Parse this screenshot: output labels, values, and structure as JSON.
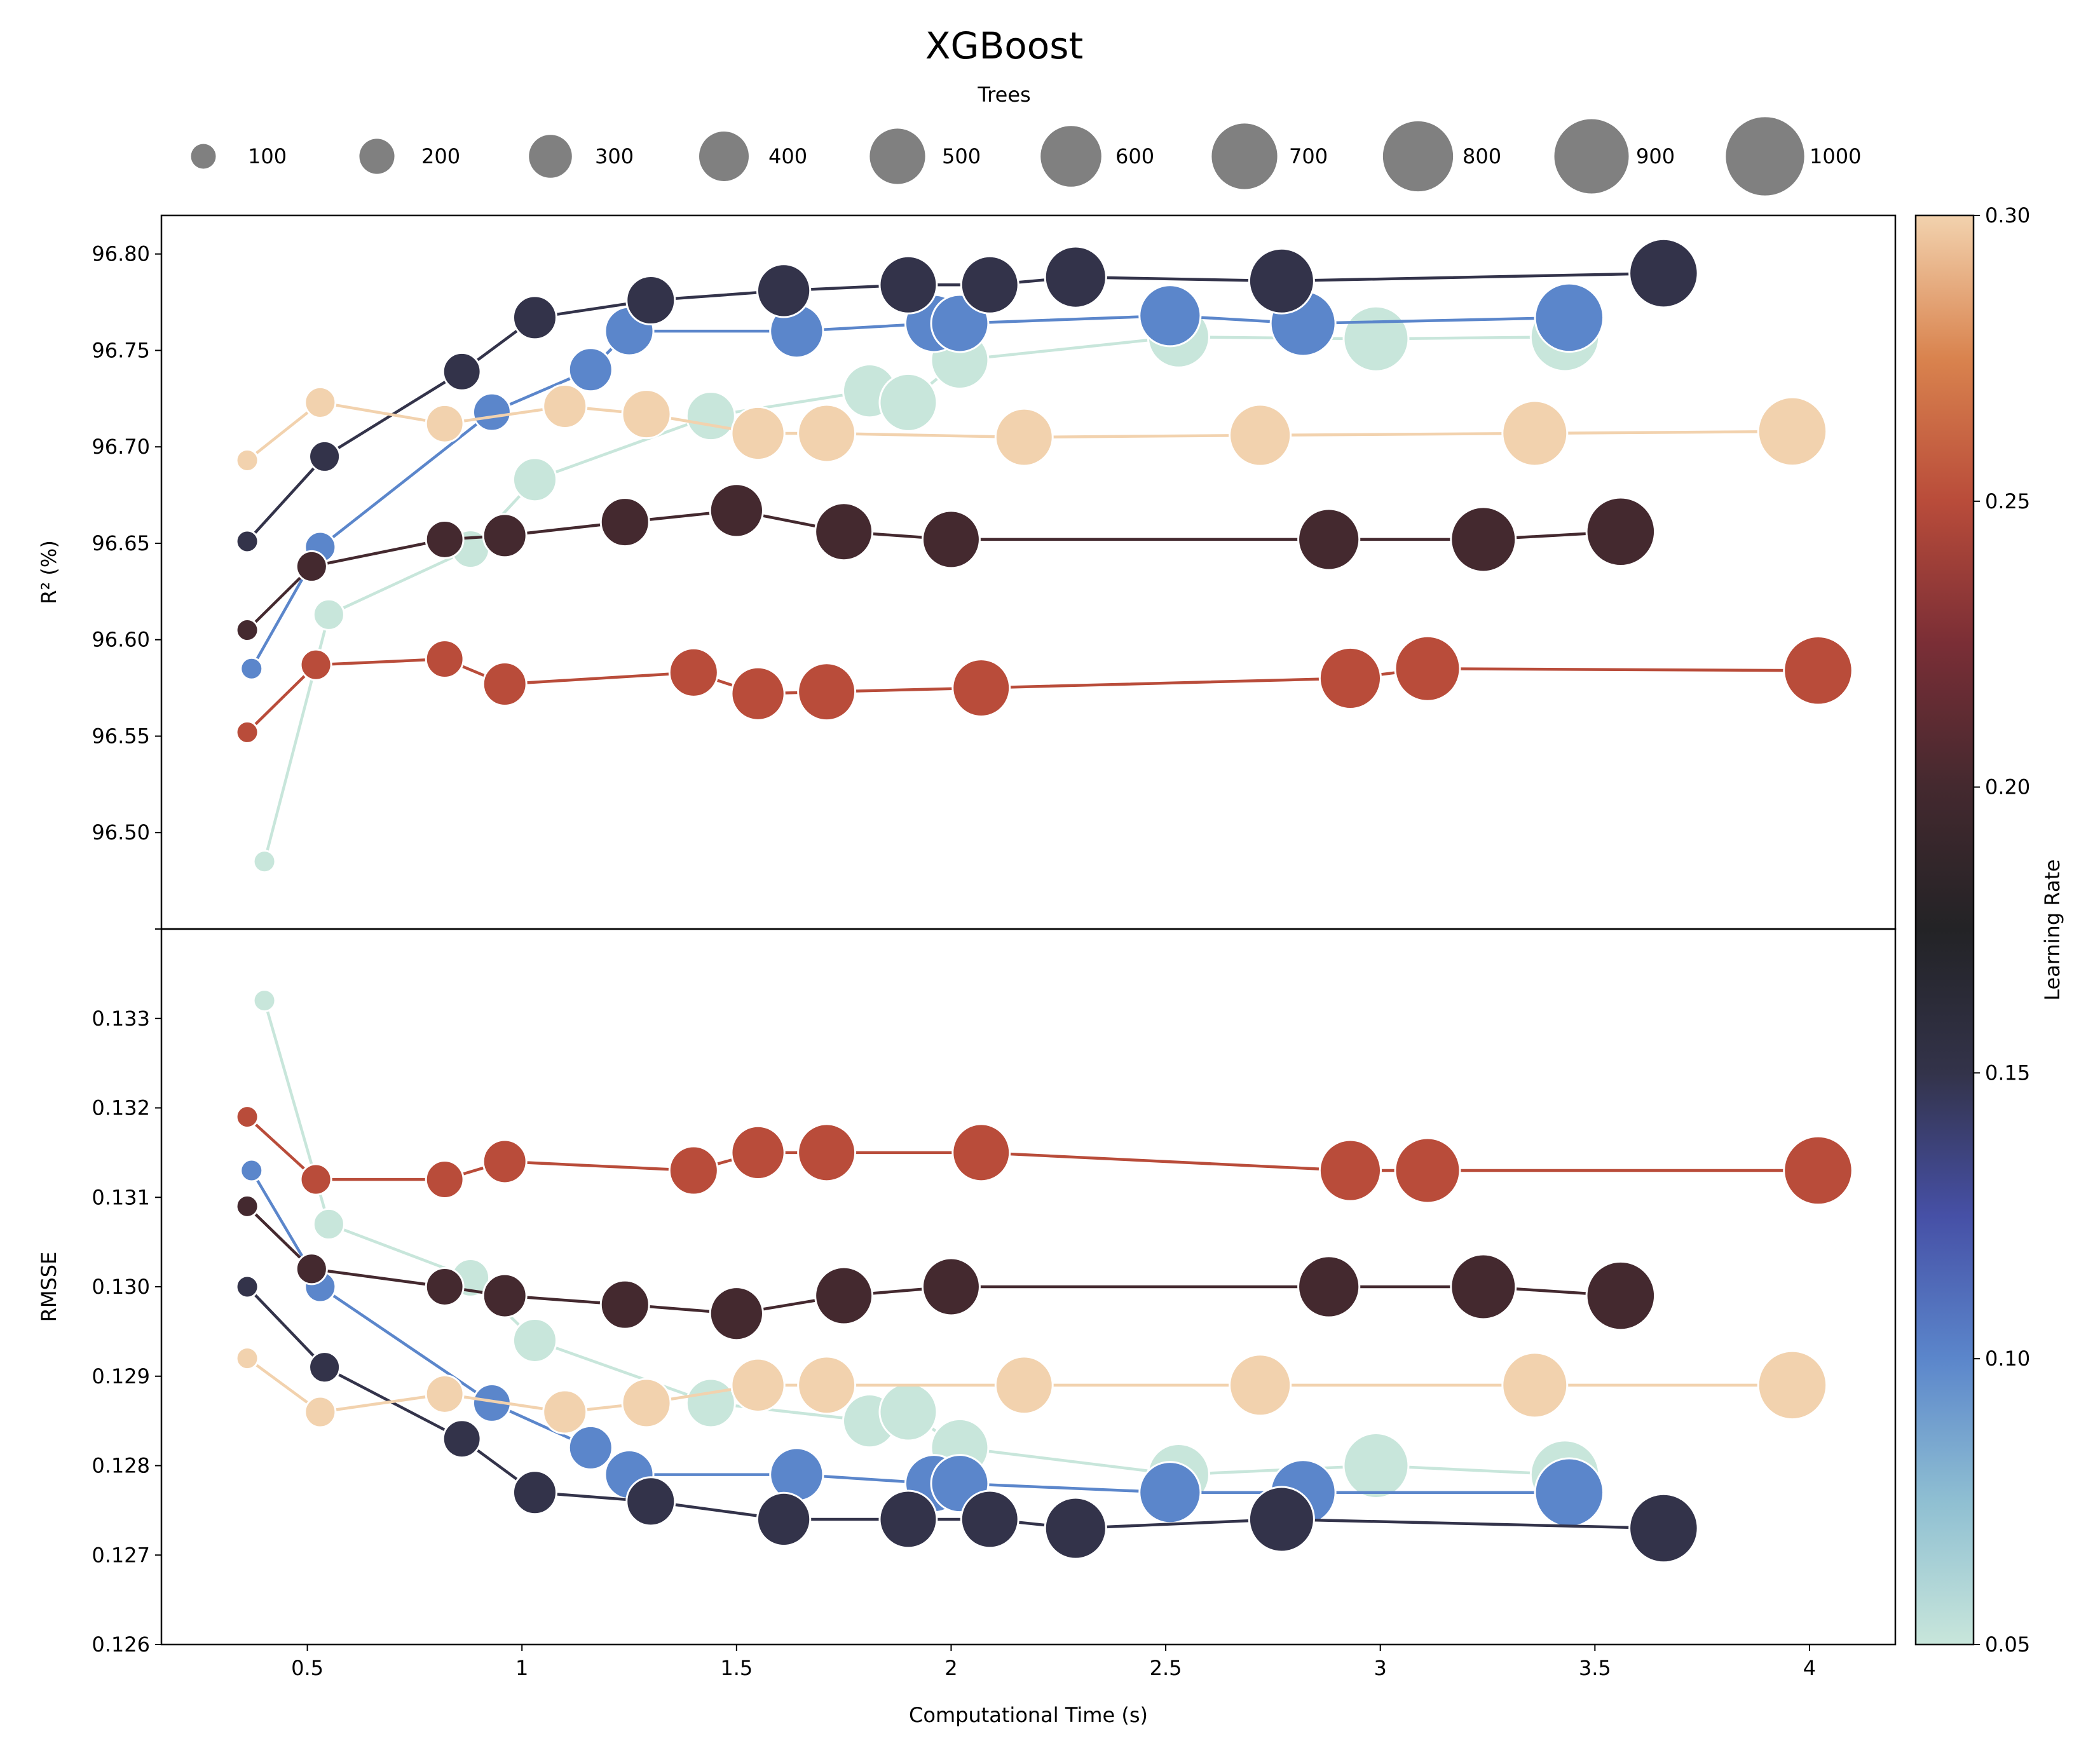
{
  "chart_data": {
    "type": "scatter",
    "title": "XGBoost",
    "xlabel": "Computational Time (s)",
    "xlim": [
      0.16,
      4.2
    ],
    "x_ticks": [
      0.5,
      1.0,
      1.5,
      2.0,
      2.5,
      3.0,
      3.5,
      4.0
    ],
    "grid": false,
    "size_legend": {
      "title": "Trees",
      "placement": "top",
      "values": [
        100,
        200,
        300,
        400,
        500,
        600,
        700,
        800,
        900,
        1000
      ],
      "color": "#808080"
    },
    "colorbar": {
      "label": "Learning Rate",
      "range": [
        0.05,
        0.3
      ],
      "ticks": [
        "0.05",
        "0.10",
        "0.15",
        "0.20",
        "0.25",
        "0.30"
      ],
      "stops": [
        {
          "v": 0.05,
          "color": "#c8e6db"
        },
        {
          "v": 0.075,
          "color": "#8fbfd2"
        },
        {
          "v": 0.1,
          "color": "#5b86cb"
        },
        {
          "v": 0.125,
          "color": "#4650a6"
        },
        {
          "v": 0.15,
          "color": "#33334a"
        },
        {
          "v": 0.175,
          "color": "#232326"
        },
        {
          "v": 0.2,
          "color": "#44292f"
        },
        {
          "v": 0.225,
          "color": "#7a2e36"
        },
        {
          "v": 0.25,
          "color": "#b94c3a"
        },
        {
          "v": 0.275,
          "color": "#d9834e"
        },
        {
          "v": 0.3,
          "color": "#f2d2ae"
        }
      ]
    },
    "panels": [
      {
        "ylabel": "R² (%)",
        "metric": "r2",
        "ylim": [
          96.45,
          96.82
        ],
        "y_ticks": [
          "96.50",
          "96.55",
          "96.60",
          "96.65",
          "96.70",
          "96.75",
          "96.80"
        ]
      },
      {
        "ylabel": "RMSSE",
        "metric": "rmsse",
        "ylim": [
          0.126,
          0.134
        ],
        "y_ticks": [
          "0.126",
          "0.127",
          "0.128",
          "0.129",
          "0.130",
          "0.131",
          "0.132",
          "0.133"
        ]
      }
    ],
    "series": [
      {
        "learning_rate": 0.05,
        "color": "#c8e6db",
        "trees": [
          100,
          200,
          300,
          400,
          500,
          600,
          700,
          700,
          800,
          900,
          1000
        ],
        "x": [
          0.4,
          0.55,
          0.88,
          1.03,
          1.44,
          1.81,
          1.9,
          2.02,
          2.53,
          2.99,
          3.43
        ],
        "r2": [
          96.485,
          96.613,
          96.647,
          96.683,
          96.716,
          96.729,
          96.723,
          96.745,
          96.757,
          96.756,
          96.757
        ],
        "rmsse": [
          0.1332,
          0.1307,
          0.1301,
          0.1294,
          0.1287,
          0.1285,
          0.1286,
          0.1282,
          0.1279,
          0.128,
          0.1279
        ]
      },
      {
        "learning_rate": 0.1,
        "color": "#5b86cb",
        "trees": [
          100,
          200,
          300,
          400,
          500,
          600,
          700,
          700,
          800,
          900,
          1000
        ],
        "x": [
          0.37,
          0.53,
          0.93,
          1.16,
          1.25,
          1.64,
          1.96,
          2.02,
          2.51,
          2.82,
          3.44
        ],
        "r2": [
          96.585,
          96.648,
          96.718,
          96.74,
          96.76,
          96.76,
          96.764,
          96.764,
          96.768,
          96.764,
          96.767
        ],
        "rmsse": [
          0.1313,
          0.13,
          0.1287,
          0.1282,
          0.1279,
          0.1279,
          0.1278,
          0.1278,
          0.1277,
          0.1277,
          0.1277
        ]
      },
      {
        "learning_rate": 0.15,
        "color": "#33334a",
        "trees": [
          100,
          200,
          300,
          400,
          500,
          600,
          700,
          700,
          800,
          900,
          1000
        ],
        "x": [
          0.36,
          0.54,
          0.86,
          1.03,
          1.3,
          1.61,
          1.9,
          2.09,
          2.29,
          2.77,
          3.66
        ],
        "r2": [
          96.651,
          96.695,
          96.739,
          96.767,
          96.776,
          96.781,
          96.784,
          96.784,
          96.788,
          96.786,
          96.79
        ],
        "rmsse": [
          0.13,
          0.1291,
          0.1283,
          0.1277,
          0.1276,
          0.1274,
          0.1274,
          0.1274,
          0.1273,
          0.1274,
          0.1273
        ]
      },
      {
        "learning_rate": 0.2,
        "color": "#44292f",
        "trees": [
          100,
          200,
          300,
          400,
          500,
          600,
          700,
          700,
          800,
          900,
          1000
        ],
        "x": [
          0.36,
          0.51,
          0.82,
          0.96,
          1.24,
          1.5,
          1.75,
          2.0,
          2.88,
          3.24,
          3.56
        ],
        "r2": [
          96.605,
          96.638,
          96.652,
          96.654,
          96.661,
          96.667,
          96.656,
          96.652,
          96.652,
          96.652,
          96.656
        ],
        "rmsse": [
          0.1309,
          0.1302,
          0.13,
          0.1299,
          0.1298,
          0.1297,
          0.1299,
          0.13,
          0.13,
          0.13,
          0.1299
        ]
      },
      {
        "learning_rate": 0.25,
        "color": "#b94c3a",
        "trees": [
          100,
          200,
          300,
          400,
          500,
          600,
          700,
          700,
          800,
          900,
          1000
        ],
        "x": [
          0.36,
          0.52,
          0.82,
          0.96,
          1.4,
          1.55,
          1.71,
          2.07,
          2.93,
          3.11,
          4.02
        ],
        "r2": [
          96.552,
          96.587,
          96.59,
          96.577,
          96.583,
          96.572,
          96.573,
          96.575,
          96.58,
          96.585,
          96.584
        ],
        "rmsse": [
          0.1319,
          0.1312,
          0.1312,
          0.1314,
          0.1313,
          0.1315,
          0.1315,
          0.1315,
          0.1313,
          0.1313,
          0.1313
        ]
      },
      {
        "learning_rate": 0.3,
        "color": "#f2d2ae",
        "trees": [
          100,
          200,
          300,
          400,
          500,
          600,
          700,
          700,
          800,
          900,
          1000
        ],
        "x": [
          0.36,
          0.53,
          0.82,
          1.1,
          1.29,
          1.55,
          1.71,
          2.17,
          2.72,
          3.36,
          3.96
        ],
        "r2": [
          96.693,
          96.723,
          96.712,
          96.721,
          96.717,
          96.707,
          96.707,
          96.705,
          96.706,
          96.707,
          96.708
        ],
        "rmsse": [
          0.1292,
          0.1286,
          0.1288,
          0.1286,
          0.1287,
          0.1289,
          0.1289,
          0.1289,
          0.1289,
          0.1289,
          0.1289
        ]
      }
    ]
  }
}
